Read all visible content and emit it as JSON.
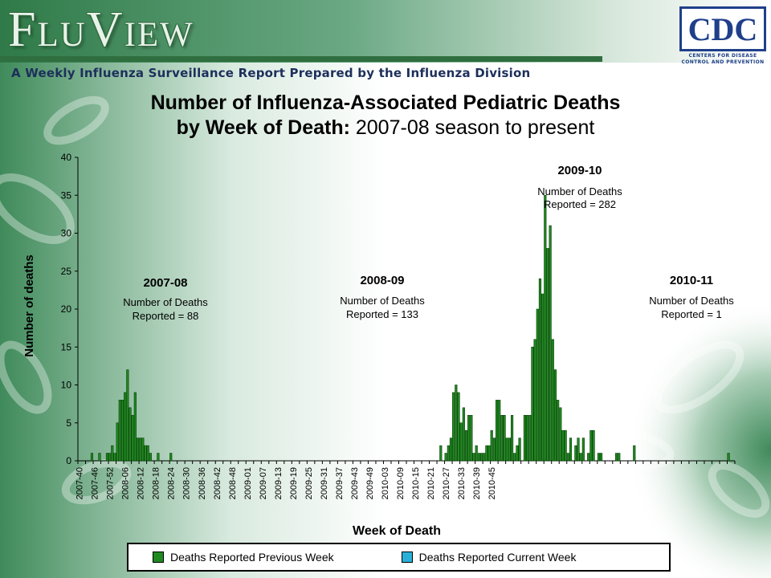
{
  "header": {
    "app_title": "FluView",
    "subtitle": "A Weekly Influenza Surveillance Report Prepared by the Influenza Division",
    "logo": {
      "text": "CDC",
      "tagline_1": "CENTERS FOR DISEASE",
      "tagline_2": "CONTROL AND PREVENTION"
    }
  },
  "colors": {
    "bar": "#1f8a1f",
    "bar_current": "#2ab0d8",
    "brand_green": "#2f6e3f",
    "brand_navy": "#1d2f5b"
  },
  "chart_data": {
    "type": "bar",
    "title_bold_1": "Number of Influenza-Associated Pediatric Deaths",
    "title_bold_2": "by Week of Death:",
    "title_rest": "2007-08 season to present",
    "xlabel": "Week of Death",
    "ylabel": "Number of deaths",
    "ylim": [
      0,
      40
    ],
    "yticks": [
      0,
      5,
      10,
      15,
      20,
      25,
      30,
      35,
      40
    ],
    "grid": false,
    "legend_position": "bottom",
    "x_tick_labels": [
      "2007-40",
      "2007-46",
      "2007-52",
      "2008-06",
      "2008-12",
      "2008-18",
      "2008-24",
      "2008-30",
      "2008-36",
      "2008-42",
      "2008-48",
      "2009-01",
      "2009-07",
      "2009-13",
      "2009-19",
      "2009-25",
      "2009-31",
      "2009-37",
      "2009-43",
      "2009-49",
      "2010-03",
      "2010-09",
      "2010-15",
      "2010-21",
      "2010-27",
      "2010-33",
      "2010-39",
      "2010-45"
    ],
    "week_labels_step": 6,
    "series": [
      {
        "name": "Deaths Reported Previous Week",
        "color": "#1f8a1f",
        "values": [
          0,
          0,
          0,
          0,
          0,
          1,
          0,
          0,
          1,
          0,
          0,
          1,
          1,
          2,
          1,
          5,
          8,
          8,
          9,
          12,
          7,
          6,
          9,
          3,
          3,
          3,
          2,
          2,
          1,
          0,
          0,
          1,
          0,
          0,
          0,
          0,
          1,
          0,
          0,
          0,
          0,
          0,
          0,
          0,
          0,
          0,
          0,
          0,
          0,
          0,
          0,
          0,
          0,
          0,
          0,
          0,
          0,
          0,
          0,
          0,
          0,
          0,
          0,
          0,
          0,
          0,
          0,
          0,
          0,
          0,
          0,
          0,
          0,
          0,
          0,
          0,
          0,
          0,
          0,
          0,
          0,
          0,
          0,
          0,
          0,
          0,
          0,
          0,
          0,
          0,
          0,
          0,
          0,
          0,
          0,
          0,
          0,
          0,
          0,
          0,
          0,
          0,
          0,
          0,
          0,
          0,
          0,
          0,
          0,
          0,
          0,
          0,
          0,
          0,
          0,
          0,
          0,
          0,
          0,
          0,
          0,
          0,
          0,
          0,
          0,
          0,
          0,
          0,
          0,
          0,
          0,
          0,
          0,
          0,
          0,
          0,
          0,
          0,
          0,
          0,
          0,
          0,
          2,
          0,
          1,
          2,
          3,
          9,
          10,
          9,
          5,
          7,
          4,
          6,
          6,
          1,
          2,
          1,
          1,
          1,
          2,
          2,
          4,
          3,
          8,
          8,
          6,
          6,
          3,
          3,
          6,
          1,
          2,
          3,
          0,
          6,
          6,
          6,
          15,
          16,
          20,
          24,
          22,
          35,
          28,
          31,
          16,
          12,
          8,
          7,
          4,
          4,
          1,
          3,
          0,
          2,
          3,
          1,
          3,
          0,
          1,
          4,
          4,
          0,
          1,
          1,
          0,
          0,
          0,
          0,
          0,
          1,
          1,
          0,
          0,
          0,
          0,
          0,
          2,
          0,
          0,
          0,
          0,
          0,
          0,
          0,
          0,
          0,
          0,
          0,
          0,
          0,
          0,
          0,
          0,
          0,
          0,
          0,
          0,
          0,
          0,
          0,
          0,
          0,
          0,
          0,
          0,
          0,
          0,
          0,
          0,
          0,
          0,
          0,
          0,
          1,
          0,
          0
        ]
      },
      {
        "name": "Deaths Reported Current Week",
        "color": "#2ab0d8",
        "values": []
      }
    ],
    "annotations": [
      {
        "season": "2007-08",
        "line1": "Number of Deaths",
        "line2": "Reported = 88"
      },
      {
        "season": "2008-09",
        "line1": "Number of Deaths",
        "line2": "Reported = 133"
      },
      {
        "season": "2009-10",
        "line1": "Number of Deaths",
        "line2": "Reported = 282"
      },
      {
        "season": "2010-11",
        "line1": "Number of Deaths",
        "line2": "Reported = 1"
      }
    ]
  }
}
